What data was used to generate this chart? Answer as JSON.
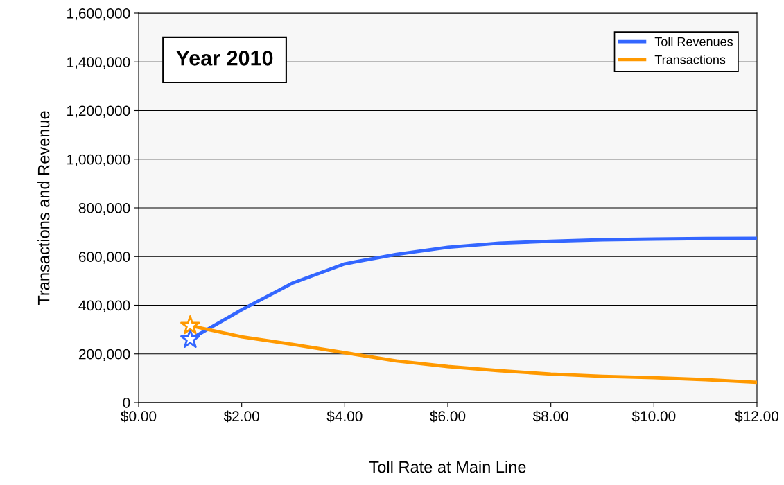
{
  "chart_data": {
    "type": "line",
    "xlabel": "Toll Rate at Main Line",
    "ylabel": "Transactions and Revenue",
    "annotations": [
      "Year 2010"
    ],
    "series": [
      {
        "name": "Toll Revenues",
        "color": "#3366ff",
        "x": [
          1,
          2,
          3,
          4,
          5,
          6,
          7,
          8,
          9,
          10,
          11,
          12
        ],
        "values": [
          260000,
          381000,
          492000,
          570000,
          609000,
          638000,
          655000,
          663000,
          669000,
          672000,
          674000,
          675000
        ]
      },
      {
        "name": "Transactions",
        "color": "#ff9900",
        "x": [
          1,
          2,
          3,
          4,
          5,
          6,
          7,
          8,
          9,
          10,
          11,
          12
        ],
        "values": [
          316000,
          270000,
          239000,
          205000,
          171000,
          148000,
          131000,
          117000,
          108000,
          102000,
          94000,
          83000
        ]
      },
      {
        "type": "scatter",
        "marker": "star",
        "color": "#3366ff",
        "x": [
          1
        ],
        "values": [
          260000
        ]
      },
      {
        "type": "scatter",
        "marker": "star",
        "color": "#ff9900",
        "x": [
          1
        ],
        "values": [
          316000
        ]
      }
    ],
    "xlim": [
      0,
      12
    ],
    "xticks": [
      {
        "value": 0,
        "label": "$0.00"
      },
      {
        "value": 2,
        "label": "$2.00"
      },
      {
        "value": 4,
        "label": "$4.00"
      },
      {
        "value": 6,
        "label": "$6.00"
      },
      {
        "value": 8,
        "label": "$8.00"
      },
      {
        "value": 10,
        "label": "$10.00"
      },
      {
        "value": 12,
        "label": "$12.00"
      }
    ],
    "ylim": [
      0,
      1600000
    ],
    "yticks": [
      {
        "value": 0,
        "label": "0"
      },
      {
        "value": 200000,
        "label": "200,000"
      },
      {
        "value": 400000,
        "label": "400,000"
      },
      {
        "value": 600000,
        "label": "600,000"
      },
      {
        "value": 800000,
        "label": "800,000"
      },
      {
        "value": 1000000,
        "label": "1,000,000"
      },
      {
        "value": 1200000,
        "label": "1,200,000"
      },
      {
        "value": 1400000,
        "label": "1,400,000"
      },
      {
        "value": 1600000,
        "label": "1,600,000"
      }
    ],
    "grid": "y",
    "legend": "top right"
  }
}
